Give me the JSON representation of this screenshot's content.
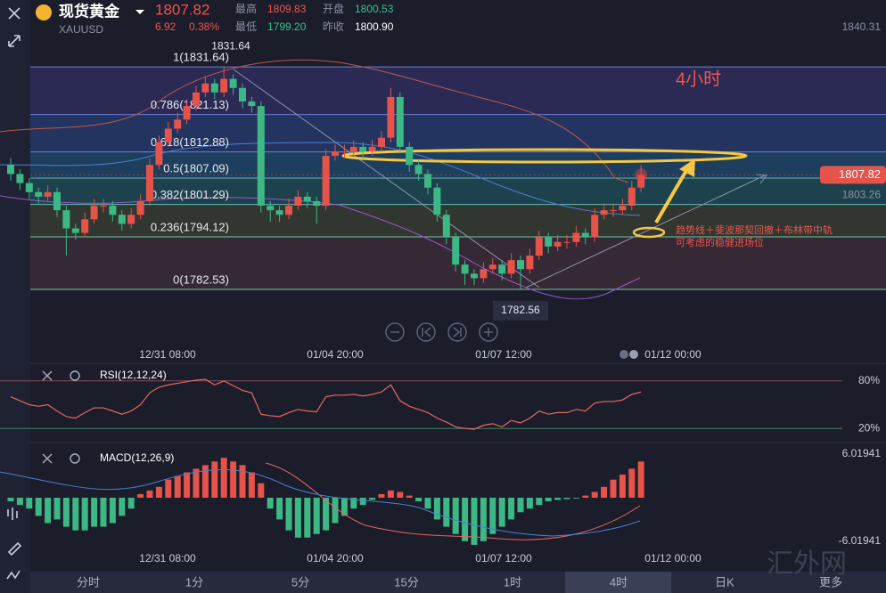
{
  "header": {
    "name": "现货黄金",
    "symbol": "XAUUSD",
    "price": "1807.82",
    "change": "6.92",
    "change_pct": "0.38%",
    "high_label": "最高",
    "high": "1809.83",
    "open_label": "开盘",
    "open": "1800.53",
    "low_label": "最低",
    "low": "1799.20",
    "prev_close_label": "昨收",
    "prev_close": "1800.90"
  },
  "chart_data": [
    {
      "type": "candlestick",
      "ylim": [
        1779,
        1840.31
      ],
      "yticks": [
        1840.31
      ],
      "last_price": 1807.82,
      "mid_price": 1803.26,
      "high_marker": 1831.64,
      "low_marker": 1782.56,
      "fib_levels": [
        {
          "value": 1831.64,
          "label": "1(1831.64)"
        },
        {
          "value": 1821.13,
          "label": "0.786(1821.13)"
        },
        {
          "value": 1812.88,
          "label": "0.618(1812.88)"
        },
        {
          "value": 1807.09,
          "label": "0.5(1807.09)"
        },
        {
          "value": 1801.29,
          "label": "0.382(1801.29)"
        },
        {
          "value": 1794.12,
          "label": "0.236(1794.12)"
        },
        {
          "value": 1782.53,
          "label": "0(1782.53)"
        }
      ],
      "x_labels": [
        "12/31 08:00",
        "01/04 20:00",
        "01/07 12:00",
        "01/12 00:00"
      ],
      "annotations": [
        "4小时",
        "趋势线＋斐波那契回撤＋布林带中轨",
        "可考虑的稳健进场位"
      ],
      "up_color": "#e5534b",
      "down_color": "#3cb884",
      "candles": [
        [
          1810,
          1811.5,
          1806.5,
          1808
        ],
        [
          1808,
          1809,
          1804.5,
          1806
        ],
        [
          1806,
          1807,
          1802.5,
          1804
        ],
        [
          1804,
          1805,
          1801.5,
          1803
        ],
        [
          1803,
          1805.5,
          1802,
          1804
        ],
        [
          1804,
          1805,
          1798.5,
          1800
        ],
        [
          1800,
          1801,
          1790,
          1796
        ],
        [
          1796,
          1797,
          1793.5,
          1795
        ],
        [
          1795,
          1799.5,
          1794,
          1798
        ],
        [
          1798,
          1802.5,
          1797,
          1801
        ],
        [
          1801,
          1802.5,
          1799.5,
          1801
        ],
        [
          1801,
          1802,
          1797.5,
          1799
        ],
        [
          1799,
          1800,
          1795.5,
          1797
        ],
        [
          1797,
          1800.5,
          1796,
          1799
        ],
        [
          1799,
          1803.5,
          1798,
          1802
        ],
        [
          1802,
          1811.5,
          1801,
          1810
        ],
        [
          1810,
          1816.5,
          1809,
          1815
        ],
        [
          1815,
          1819.5,
          1814,
          1818
        ],
        [
          1818,
          1821.5,
          1817,
          1820
        ],
        [
          1820,
          1824.5,
          1819,
          1823
        ],
        [
          1823,
          1827.5,
          1822,
          1826
        ],
        [
          1826,
          1829.5,
          1825,
          1828
        ],
        [
          1828,
          1829,
          1824.5,
          1826
        ],
        [
          1826,
          1831.64,
          1825,
          1829
        ],
        [
          1829,
          1830,
          1825.5,
          1827
        ],
        [
          1827,
          1828,
          1822.5,
          1824
        ],
        [
          1824,
          1825,
          1821.5,
          1823
        ],
        [
          1823,
          1824,
          1799.5,
          1801
        ],
        [
          1801,
          1802,
          1797.5,
          1800
        ],
        [
          1800,
          1801,
          1797.5,
          1799
        ],
        [
          1799,
          1802.5,
          1798,
          1801
        ],
        [
          1801,
          1804.5,
          1800,
          1803
        ],
        [
          1803,
          1804,
          1800.5,
          1802
        ],
        [
          1802,
          1803,
          1797,
          1801
        ],
        [
          1801,
          1813.5,
          1800,
          1812
        ],
        [
          1812,
          1814.5,
          1811,
          1813
        ],
        [
          1813,
          1814.5,
          1811.5,
          1813
        ],
        [
          1813,
          1815.5,
          1812,
          1814
        ],
        [
          1814,
          1815,
          1811.5,
          1813
        ],
        [
          1813,
          1815.5,
          1812,
          1814
        ],
        [
          1814,
          1817.5,
          1813,
          1816
        ],
        [
          1816,
          1827,
          1815,
          1825
        ],
        [
          1825,
          1826,
          1812.5,
          1814
        ],
        [
          1814,
          1815,
          1808.5,
          1810
        ],
        [
          1810,
          1811,
          1806.5,
          1808
        ],
        [
          1808,
          1809,
          1803.5,
          1805
        ],
        [
          1805,
          1806,
          1797.5,
          1799
        ],
        [
          1799,
          1800,
          1792.5,
          1794
        ],
        [
          1794,
          1795,
          1786.5,
          1788
        ],
        [
          1788,
          1789,
          1783.5,
          1786
        ],
        [
          1786,
          1787,
          1783.5,
          1785
        ],
        [
          1785,
          1788.5,
          1784,
          1787
        ],
        [
          1787,
          1789.5,
          1786,
          1788
        ],
        [
          1788,
          1789,
          1784.5,
          1786
        ],
        [
          1786,
          1790.5,
          1785,
          1789
        ],
        [
          1789,
          1790,
          1782.56,
          1787
        ],
        [
          1787,
          1791.5,
          1786,
          1790
        ],
        [
          1790,
          1795.5,
          1789,
          1794
        ],
        [
          1794,
          1795,
          1790.5,
          1792
        ],
        [
          1792,
          1794.5,
          1791,
          1793
        ],
        [
          1793,
          1794.5,
          1791.5,
          1793
        ],
        [
          1793,
          1796.5,
          1792,
          1795
        ],
        [
          1795,
          1796,
          1792.5,
          1794
        ],
        [
          1794,
          1800.5,
          1793,
          1799
        ],
        [
          1799,
          1801.5,
          1798,
          1800
        ],
        [
          1800,
          1801.5,
          1798.5,
          1800
        ],
        [
          1800,
          1802.5,
          1799,
          1801
        ],
        [
          1801,
          1806.5,
          1800,
          1805
        ],
        [
          1805,
          1809.83,
          1804,
          1807.82
        ]
      ]
    },
    {
      "type": "line",
      "title": "RSI(12,12,24)",
      "ylim": [
        0,
        100
      ],
      "yticks": [
        {
          "value": 80,
          "label": "80%"
        },
        {
          "value": 20,
          "label": "20%"
        }
      ],
      "series": [
        {
          "color": "#e8675e",
          "values": [
            60,
            55,
            50,
            48,
            50,
            42,
            35,
            33,
            40,
            46,
            46,
            42,
            38,
            42,
            50,
            65,
            72,
            75,
            77,
            79,
            81,
            82,
            75,
            80,
            74,
            68,
            65,
            38,
            36,
            35,
            40,
            44,
            42,
            41,
            60,
            62,
            62,
            63,
            61,
            63,
            66,
            75,
            55,
            48,
            44,
            40,
            33,
            28,
            22,
            20,
            19,
            24,
            26,
            22,
            30,
            27,
            33,
            42,
            38,
            40,
            40,
            44,
            42,
            52,
            54,
            54,
            56,
            63,
            66
          ]
        }
      ]
    },
    {
      "type": "bar",
      "title": "MACD(12,26,9)",
      "ylim": [
        -6.01941,
        6.01941
      ],
      "yticks": [
        6.01941,
        -6.01941
      ],
      "x_labels": [
        "12/31 08:00",
        "01/04 20:00",
        "01/07 12:00",
        "01/12 00:00"
      ],
      "up_color": "#e5534b",
      "down_color": "#3cb884",
      "values": [
        -0.5,
        -1,
        -1.5,
        -2.5,
        -3.5,
        -3,
        -4,
        -4.5,
        -4.5,
        -4,
        -4,
        -3.5,
        -2.5,
        -1.5,
        0.5,
        1,
        1.5,
        2.5,
        3,
        3.5,
        4,
        4.5,
        5,
        5.5,
        5,
        4.5,
        3.5,
        2,
        -1.5,
        -3,
        -4.5,
        -5.5,
        -5.5,
        -5,
        -4.5,
        -3.5,
        -2.5,
        -1.5,
        -1,
        -0.3,
        0.5,
        1,
        0.8,
        0.3,
        -0.5,
        -1.5,
        -3,
        -4,
        -5,
        -6,
        -6.5,
        -6,
        -5,
        -4,
        -3,
        -2,
        -1.5,
        -1,
        -0.5,
        -0.3,
        -0.2,
        -0.1,
        0.3,
        0.8,
        1.5,
        2.5,
        3.2,
        4,
        5
      ]
    }
  ],
  "tabs": [
    "分时",
    "1分",
    "5分",
    "15分",
    "1时",
    "4时",
    "日K",
    "更多"
  ],
  "selected_tab": 5,
  "watermark": "汇外网"
}
